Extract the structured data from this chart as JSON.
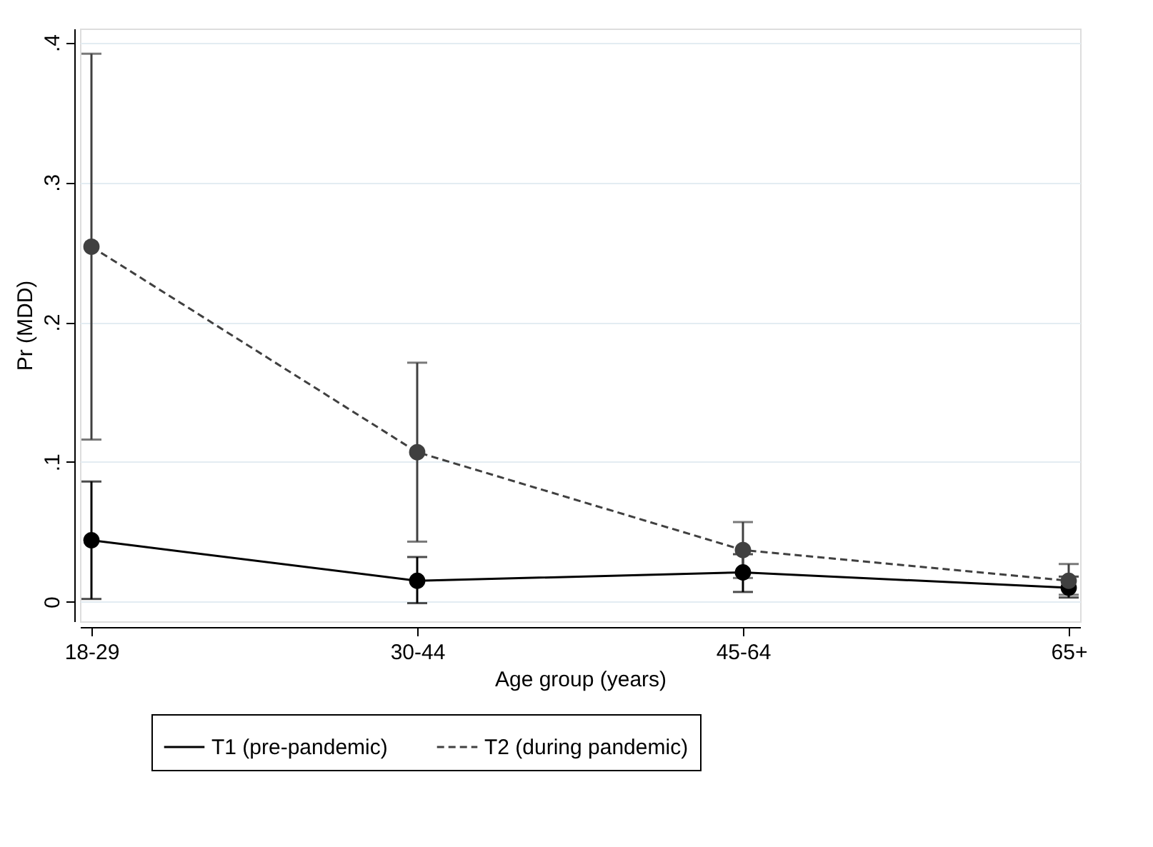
{
  "chart_data": {
    "type": "line",
    "xlabel": "Age group (years)",
    "ylabel": "Pr (MDD)",
    "categories": [
      "18-29",
      "30-44",
      "45-64",
      "65+"
    ],
    "series": [
      {
        "name": "T1 (pre-pandemic)",
        "color": "#000000",
        "line_style": "solid",
        "values": [
          0.044,
          0.015,
          0.021,
          0.01
        ],
        "errors": [
          [
            0.002,
            0.086
          ],
          [
            -0.001,
            0.032
          ],
          [
            0.007,
            0.034
          ],
          [
            0.003,
            0.018
          ]
        ]
      },
      {
        "name": "T2 (during pandemic)",
        "color": "#404040",
        "line_style": "dashed",
        "values": [
          0.254,
          0.107,
          0.037,
          0.015
        ],
        "errors": [
          [
            0.116,
            0.392
          ],
          [
            0.043,
            0.171
          ],
          [
            0.017,
            0.057
          ],
          [
            0.005,
            0.027
          ]
        ]
      }
    ],
    "ylim": [
      -0.014,
      0.41
    ],
    "yticks": [
      {
        "value": 0,
        "label": "0"
      },
      {
        "value": 0.1,
        "label": ".1"
      },
      {
        "value": 0.2,
        "label": ".2"
      },
      {
        "value": 0.3,
        "label": ".3"
      },
      {
        "value": 0.4,
        "label": ".4"
      }
    ],
    "grid": "y",
    "legend": "bottom",
    "marker": "circle"
  }
}
